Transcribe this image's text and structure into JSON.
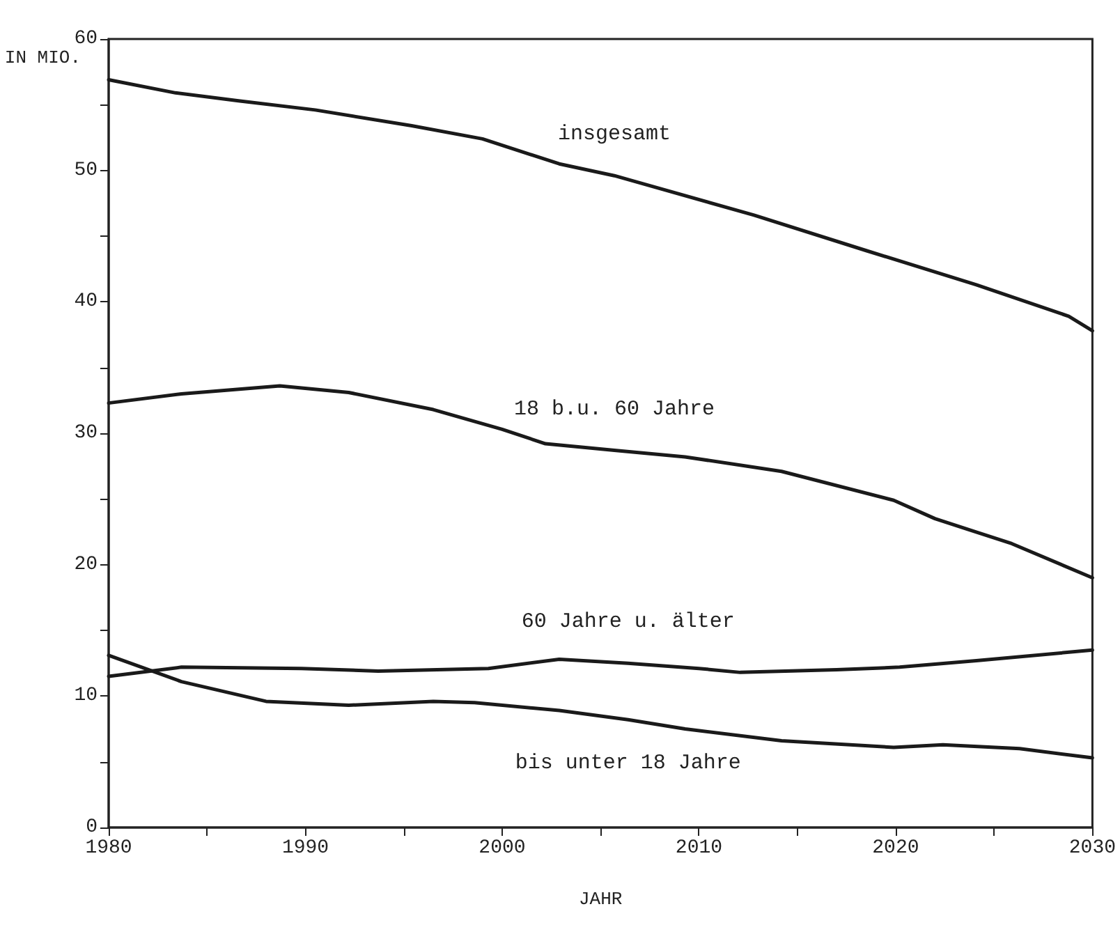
{
  "chart_data": {
    "type": "line",
    "xlabel": "JAHR",
    "ylabel": "IN MIO.",
    "xlim": [
      1980,
      2030
    ],
    "ylim": [
      0,
      60
    ],
    "xticks": [
      1980,
      {
        "value": 1985,
        "label": null
      },
      1990,
      {
        "value": 1995,
        "label": null
      },
      2000,
      {
        "value": 2005,
        "label": null
      },
      2010,
      {
        "value": 2015,
        "label": null
      },
      2020,
      {
        "value": 2025,
        "label": null
      },
      2030
    ],
    "yticks": [
      0,
      {
        "value": 5,
        "label": null
      },
      10,
      {
        "value": 15,
        "label": null
      },
      20,
      {
        "value": 25,
        "label": null
      },
      30,
      {
        "value": 35,
        "label": null
      },
      40,
      {
        "value": 45,
        "label": null
      },
      50,
      {
        "value": 55,
        "label": null
      },
      60
    ],
    "grid": false,
    "legend": false,
    "marker": "none",
    "line_style": "solid",
    "series": [
      {
        "name": "insgesamt",
        "color": "#1a1a1a",
        "x": [
          1980,
          1983.4,
          1986.6,
          1990.5,
          1995.4,
          1999,
          2002.9,
          2005.7,
          2012.8,
          2018.5,
          2024.1,
          2028.8,
          2030
        ],
        "values": [
          56.9,
          55.9,
          55.3,
          54.6,
          53.4,
          52.4,
          50.5,
          49.6,
          46.6,
          43.9,
          41.3,
          38.9,
          37.8
        ]
      },
      {
        "name": "18 b.u. 60 Jahre",
        "color": "#1a1a1a",
        "x": [
          1980,
          1983.7,
          1988.7,
          1992.2,
          1996.5,
          2000,
          2002.2,
          2005.7,
          2009.3,
          2014.2,
          2019.9,
          2022,
          2025.9,
          2030
        ],
        "values": [
          32.3,
          33.0,
          33.6,
          33.1,
          31.8,
          30.3,
          29.2,
          28.7,
          28.2,
          27.1,
          24.9,
          23.5,
          21.6,
          19.0
        ]
      },
      {
        "name": "60 Jahre u. älter",
        "color": "#1a1a1a",
        "x": [
          1980,
          1983.7,
          1989.8,
          1993.7,
          1999.3,
          2002.9,
          2006.4,
          2010,
          2012.1,
          2017,
          2020.2,
          2024.1,
          2030
        ],
        "values": [
          11.5,
          12.2,
          12.1,
          11.9,
          12.1,
          12.8,
          12.5,
          12.1,
          11.8,
          12.0,
          12.2,
          12.7,
          13.5
        ]
      },
      {
        "name": "bis unter 18 Jahre",
        "color": "#1a1a1a",
        "x": [
          1980,
          1983.7,
          1988,
          1992.2,
          1996.5,
          1998.6,
          2002.9,
          2006.4,
          2009.3,
          2014.2,
          2019.9,
          2022.4,
          2026.3,
          2030
        ],
        "values": [
          13.1,
          11.1,
          9.6,
          9.3,
          9.6,
          9.5,
          8.9,
          8.2,
          7.5,
          6.6,
          6.1,
          6.3,
          6.0,
          5.3
        ]
      }
    ]
  }
}
